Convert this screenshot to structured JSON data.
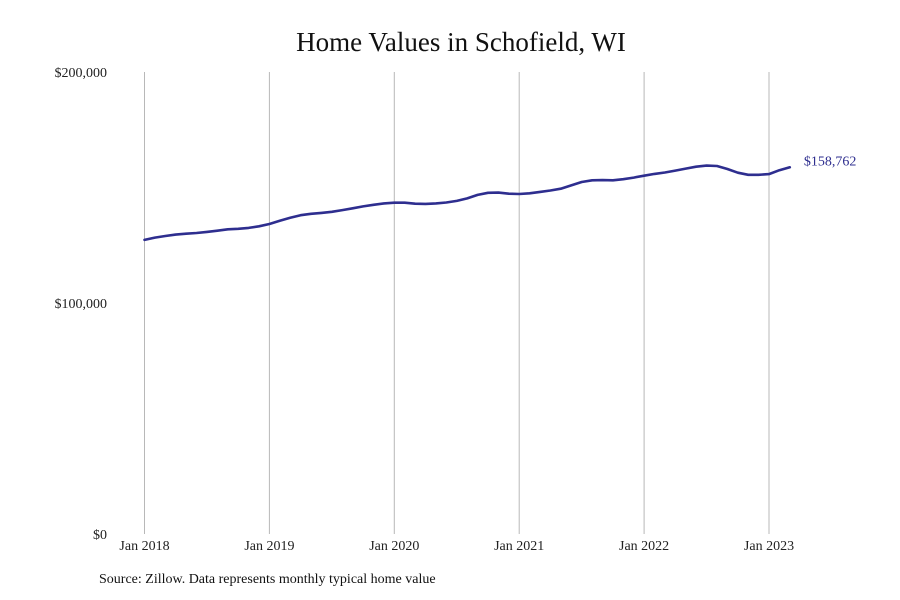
{
  "chart_data": {
    "type": "line",
    "title": "Home Values in Schofield, WI",
    "xlabel": "",
    "ylabel": "",
    "source": "Source: Zillow. Data represents monthly typical home value",
    "x_start": "2018-01",
    "x_tick_labels": [
      "Jan 2018",
      "Jan 2019",
      "Jan 2020",
      "Jan 2021",
      "Jan 2022",
      "Jan 2023"
    ],
    "y_tick_labels": [
      "$0",
      "$100,000",
      "$200,000"
    ],
    "ylim": [
      0,
      200000
    ],
    "grid": {
      "vertical": true,
      "horizontal": false
    },
    "line_color": "#2e2e8f",
    "end_label": "$158,762",
    "series": [
      {
        "values": [
          127300,
          128300,
          129000,
          129600,
          130000,
          130300,
          130800,
          131300,
          131900,
          132100,
          132500,
          133200,
          134200,
          135600,
          136900,
          138000,
          138600,
          139000,
          139500,
          140200,
          141000,
          141800,
          142500,
          143100,
          143400,
          143400,
          143000,
          142900,
          143100,
          143500,
          144200,
          145300,
          146800,
          147700,
          147800,
          147300,
          147200,
          147500,
          148100,
          148700,
          149500,
          150900,
          152400,
          153100,
          153200,
          153100,
          153600,
          154300,
          155100,
          155900,
          156500,
          157300,
          158200,
          159000,
          159500,
          159300,
          158000,
          156400,
          155500,
          155500,
          155800,
          157500,
          158762
        ]
      }
    ]
  }
}
